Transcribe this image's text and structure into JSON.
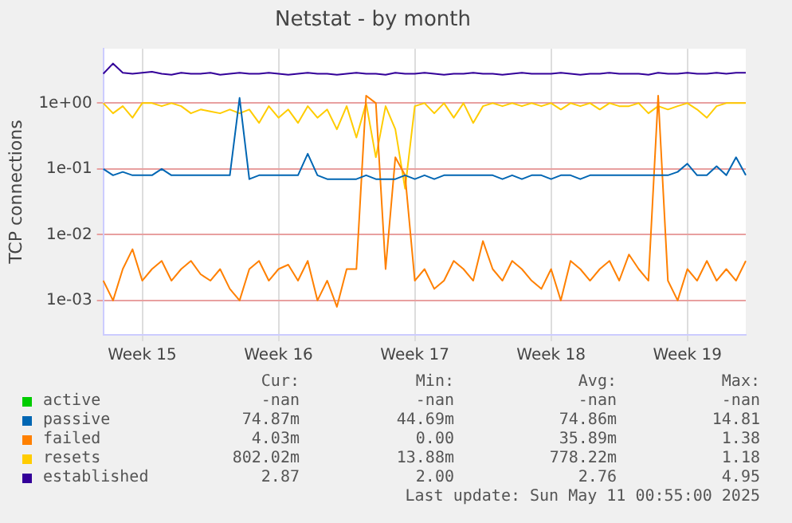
{
  "chart_data": {
    "type": "line",
    "title": "Netstat - by month",
    "ylabel": "TCP connections",
    "log": "y",
    "grid": true,
    "legend": "bottom",
    "marker": "none",
    "line_style": "solid",
    "ylim": [
      0.00034,
      6.7
    ],
    "yticks": [
      {
        "value": 0.001,
        "label": "1e-03"
      },
      {
        "value": 0.01,
        "label": "1e-02"
      },
      {
        "value": 0.1,
        "label": "1e-01"
      },
      {
        "value": 1,
        "label": "1e+00"
      }
    ],
    "categories": [
      null,
      null,
      null,
      null,
      "Week 15",
      null,
      null,
      null,
      null,
      null,
      null,
      null,
      null,
      null,
      null,
      null,
      null,
      null,
      "Week 16",
      null,
      null,
      null,
      null,
      null,
      null,
      null,
      null,
      null,
      null,
      null,
      null,
      null,
      "Week 17",
      null,
      null,
      null,
      null,
      null,
      null,
      null,
      null,
      null,
      null,
      null,
      null,
      null,
      "Week 18",
      null,
      null,
      null,
      null,
      null,
      null,
      null,
      null,
      null,
      null,
      null,
      null,
      null,
      "Week 19",
      null,
      null,
      null,
      null,
      null,
      null
    ],
    "series": [
      {
        "name": "active",
        "color": "#00cc00",
        "values": [
          null,
          null,
          null,
          null,
          null,
          null,
          null,
          null,
          null,
          null,
          null,
          null,
          null,
          null,
          null,
          null,
          null,
          null,
          null,
          null,
          null,
          null,
          null,
          null,
          null,
          null,
          null,
          null,
          null,
          null,
          null,
          null,
          null,
          null,
          null,
          null,
          null,
          null,
          null,
          null,
          null,
          null,
          null,
          null,
          null,
          null,
          null,
          null,
          null,
          null,
          null,
          null,
          null,
          null,
          null,
          null,
          null,
          null,
          null,
          null,
          null,
          null,
          null,
          null,
          null,
          null,
          null
        ]
      },
      {
        "name": "passive",
        "color": "#0066b3",
        "values": [
          0.1,
          0.08,
          0.09,
          0.08,
          0.08,
          0.08,
          0.1,
          0.08,
          0.08,
          0.08,
          0.08,
          0.08,
          0.08,
          0.08,
          1.2,
          0.07,
          0.08,
          0.08,
          0.08,
          0.08,
          0.08,
          0.17,
          0.08,
          0.07,
          0.07,
          0.07,
          0.07,
          0.08,
          0.07,
          0.07,
          0.07,
          0.08,
          0.07,
          0.08,
          0.07,
          0.08,
          0.08,
          0.08,
          0.08,
          0.08,
          0.08,
          0.07,
          0.08,
          0.07,
          0.08,
          0.08,
          0.07,
          0.08,
          0.08,
          0.07,
          0.08,
          0.08,
          0.08,
          0.08,
          0.08,
          0.08,
          0.08,
          0.08,
          0.08,
          0.09,
          0.12,
          0.08,
          0.08,
          0.11,
          0.08,
          0.15,
          0.08
        ]
      },
      {
        "name": "failed",
        "color": "#ff8000",
        "values": [
          0.002,
          0.001,
          0.003,
          0.006,
          0.002,
          0.003,
          0.004,
          0.002,
          0.003,
          0.004,
          0.0025,
          0.002,
          0.003,
          0.0015,
          0.001,
          0.003,
          0.004,
          0.002,
          0.003,
          0.0035,
          0.002,
          0.004,
          0.001,
          0.002,
          0.0008,
          0.003,
          0.003,
          1.3,
          1.0,
          0.003,
          0.15,
          0.08,
          0.002,
          0.003,
          0.0015,
          0.002,
          0.004,
          0.003,
          0.002,
          0.008,
          0.003,
          0.002,
          0.004,
          0.003,
          0.002,
          0.0015,
          0.003,
          0.001,
          0.004,
          0.003,
          0.002,
          0.003,
          0.004,
          0.002,
          0.005,
          0.003,
          0.002,
          1.3,
          0.002,
          0.001,
          0.003,
          0.002,
          0.004,
          0.002,
          0.003,
          0.002,
          0.004
        ]
      },
      {
        "name": "resets",
        "color": "#ffcc00",
        "values": [
          1.0,
          0.7,
          0.9,
          0.6,
          1.0,
          1.0,
          0.9,
          1.0,
          0.9,
          0.7,
          0.8,
          0.75,
          0.7,
          0.8,
          0.7,
          0.8,
          0.5,
          0.9,
          0.6,
          0.8,
          0.5,
          0.9,
          0.6,
          0.8,
          0.4,
          0.9,
          0.3,
          1.0,
          0.15,
          0.9,
          0.4,
          0.05,
          0.9,
          1.0,
          0.7,
          1.0,
          0.6,
          1.0,
          0.5,
          0.9,
          1.0,
          0.9,
          1.0,
          0.9,
          1.0,
          0.9,
          1.0,
          0.8,
          1.0,
          0.9,
          1.0,
          0.8,
          1.0,
          0.9,
          0.9,
          1.0,
          0.7,
          0.9,
          0.8,
          0.9,
          1.0,
          0.8,
          0.6,
          0.9,
          1.0,
          1.0,
          1.0
        ]
      },
      {
        "name": "established",
        "color": "#330099",
        "values": [
          2.8,
          4.0,
          2.9,
          2.8,
          2.9,
          3.0,
          2.8,
          2.7,
          2.9,
          2.8,
          2.8,
          2.9,
          2.7,
          2.8,
          2.9,
          2.8,
          2.8,
          2.9,
          2.8,
          2.7,
          2.8,
          2.9,
          2.8,
          2.8,
          2.7,
          2.8,
          2.9,
          2.8,
          2.8,
          2.7,
          2.9,
          2.8,
          2.8,
          2.9,
          2.8,
          2.7,
          2.8,
          2.8,
          2.9,
          2.8,
          2.8,
          2.7,
          2.8,
          2.9,
          2.8,
          2.8,
          2.8,
          2.9,
          2.8,
          2.7,
          2.8,
          2.8,
          2.9,
          2.8,
          2.8,
          2.8,
          2.7,
          2.9,
          2.8,
          2.8,
          2.9,
          2.8,
          2.8,
          2.9,
          2.8,
          2.9,
          2.9
        ]
      }
    ],
    "annotations": [
      "Cur:",
      "Min:",
      "Avg:",
      "Max:",
      "-nan",
      "-nan",
      "-nan",
      "-nan",
      "74.87m",
      "44.69m",
      "74.86m",
      "14.81",
      "4.03m",
      "0.00",
      "35.89m",
      "1.38",
      "802.02m",
      "13.88m",
      "778.22m",
      "1.18",
      "2.87",
      "2.00",
      "2.76",
      "4.95",
      "Last update: Sun May 11 00:55:00 2025"
    ]
  }
}
